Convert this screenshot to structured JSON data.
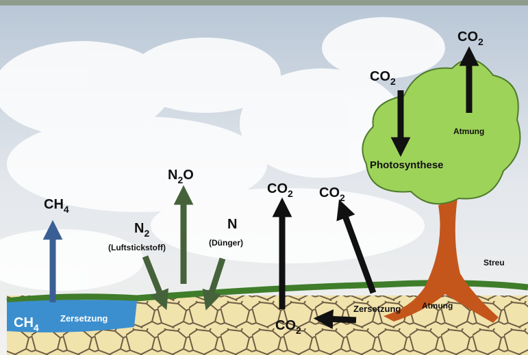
{
  "gases": [
    {
      "parts": [
        "CH",
        "4"
      ]
    },
    {
      "parts": [
        "N",
        "2",
        "O"
      ]
    },
    {
      "parts": [
        "N",
        "2"
      ]
    },
    {
      "parts": [
        "N"
      ]
    },
    {
      "parts": [
        "CO",
        "2"
      ]
    },
    {
      "parts": [
        "CO",
        "2"
      ]
    },
    {
      "parts": [
        "CO",
        "2"
      ]
    },
    {
      "parts": [
        "CO",
        "2"
      ]
    },
    {
      "parts": [
        "CO",
        "2"
      ]
    },
    {
      "parts": [
        "CH",
        "4"
      ]
    }
  ],
  "captions": [
    "(Luftstickstoff)",
    "(Dünger)",
    "Photosynthese",
    "Atmung",
    "Atmung",
    "Streu",
    "Zersetzung",
    "Zersetzung"
  ]
}
